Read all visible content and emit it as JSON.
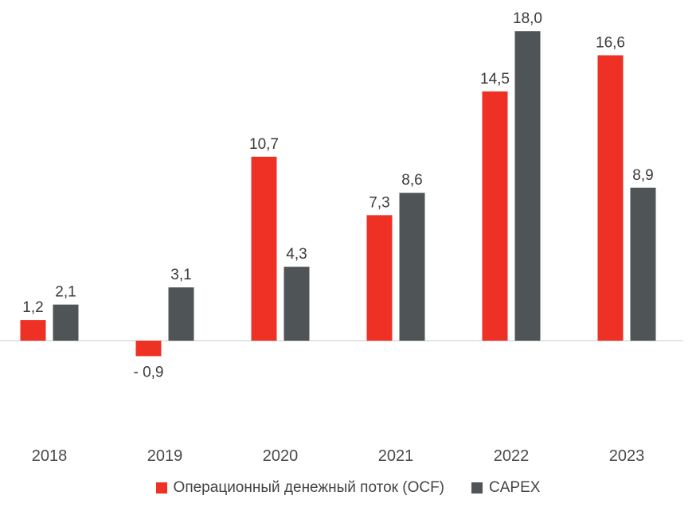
{
  "chart_data": {
    "type": "bar",
    "categories": [
      "2018",
      "2019",
      "2020",
      "2021",
      "2022",
      "2023"
    ],
    "series": [
      {
        "name": "Операционный денежный поток (OCF)",
        "color": "#ee3124",
        "values": [
          1.2,
          -0.9,
          10.7,
          7.3,
          14.5,
          16.6
        ],
        "labels": [
          "1,2",
          "- 0,9",
          "10,7",
          "7,3",
          "14,5",
          "16,6"
        ]
      },
      {
        "name": "CAPEX",
        "color": "#4f5557",
        "values": [
          2.1,
          3.1,
          4.3,
          8.6,
          18.0,
          8.9
        ],
        "labels": [
          "2,1",
          "3,1",
          "4,3",
          "8,6",
          "18,0",
          "8,9"
        ]
      }
    ],
    "baseline_color": "#cccccc",
    "grid": false,
    "legend": "bottom"
  }
}
